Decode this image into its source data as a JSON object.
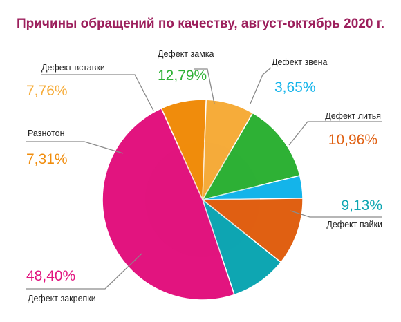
{
  "chart_data": {
    "type": "pie",
    "title": "Причины обращений по качеству, август-октябрь 2020 г.",
    "title_color": "#9c1f5c",
    "unit": "%",
    "slices": [
      {
        "label": "Дефект замка",
        "value": 12.79,
        "value_label": "12,79%",
        "color": "#2eb135"
      },
      {
        "label": "Дефект звена",
        "value": 3.65,
        "value_label": "3,65%",
        "color": "#14b4ea"
      },
      {
        "label": "Дефект литья",
        "value": 10.96,
        "value_label": "10,96%",
        "color": "#e06012"
      },
      {
        "label": "Дефект пайки",
        "value": 9.13,
        "value_label": "9,13%",
        "color": "#0ea6b2"
      },
      {
        "label": "Дефект закрепки",
        "value": 48.4,
        "value_label": "48,40%",
        "color": "#e2147f"
      },
      {
        "label": "Разнотон",
        "value": 7.31,
        "value_label": "7,31%",
        "color": "#f08c0c"
      },
      {
        "label": "Дефект вставки",
        "value": 7.76,
        "value_label": "7,76%",
        "color": "#f6ac3a"
      }
    ]
  }
}
